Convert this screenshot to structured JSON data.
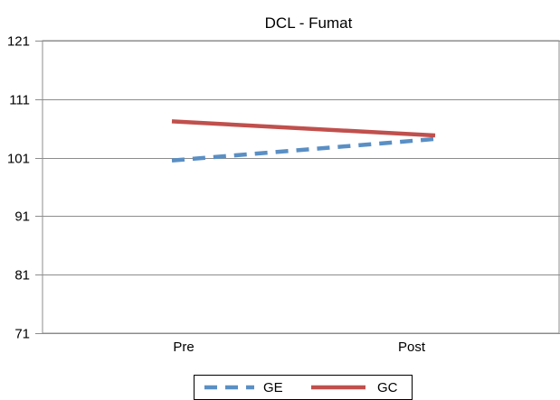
{
  "chart_data": {
    "type": "line",
    "title": "DCL - Fumat",
    "xlabel": "",
    "ylabel": "",
    "categories": [
      "Pre",
      "Post"
    ],
    "ylim": [
      71,
      121
    ],
    "yticks": [
      71,
      81,
      91,
      101,
      111,
      121
    ],
    "grid": true,
    "legend_position": "bottom",
    "series": [
      {
        "name": "GE",
        "values": [
          100.5,
          104.2
        ],
        "color": "#5a8fc4",
        "style": "dashed"
      },
      {
        "name": "GC",
        "values": [
          107.2,
          104.8
        ],
        "color": "#c0504d",
        "style": "solid"
      }
    ]
  }
}
